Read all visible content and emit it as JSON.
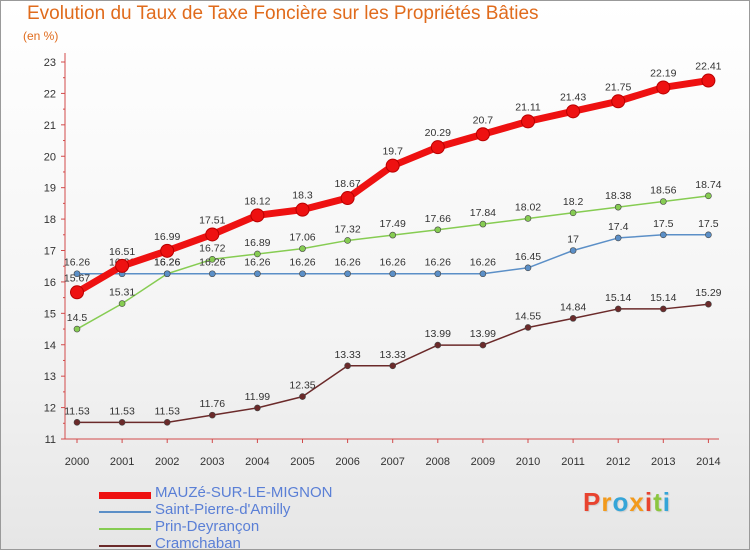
{
  "chart_data": {
    "type": "line",
    "title": "Evolution du Taux de Taxe Foncière sur les Propriétés Bâties",
    "ylabel": "(en %)",
    "xlabel": "",
    "x": [
      "2000",
      "2001",
      "2002",
      "2003",
      "2004",
      "2005",
      "2006",
      "2007",
      "2008",
      "2009",
      "2010",
      "2011",
      "2012",
      "2013",
      "2014"
    ],
    "y_ticks": [
      "11",
      "12",
      "13",
      "14",
      "15",
      "16",
      "17",
      "18",
      "19",
      "20",
      "21",
      "22",
      "23"
    ],
    "ylim": [
      11,
      23
    ],
    "grid": false,
    "legend_position": "bottom-left",
    "series": [
      {
        "name": "MAUZé-SUR-LE-MIGNON",
        "color": "#ee1111",
        "values": [
          15.67,
          16.51,
          16.99,
          17.51,
          18.12,
          18.3,
          18.67,
          19.7,
          20.29,
          20.7,
          21.11,
          21.43,
          21.75,
          22.19,
          22.41
        ],
        "labels": [
          "15.67",
          "16.51",
          "16.99",
          "17.51",
          "18.12",
          "18.3",
          "18.67",
          "19.7",
          "20.29",
          "20.7",
          "21.11",
          "21.43",
          "21.75",
          "22.19",
          "22.41"
        ]
      },
      {
        "name": "Saint-Pierre-d'Amilly",
        "color": "#5b8fc7",
        "values": [
          16.26,
          16.26,
          16.26,
          16.26,
          16.26,
          16.26,
          16.26,
          16.26,
          16.26,
          16.26,
          16.45,
          17,
          17.4,
          17.5,
          17.5
        ],
        "labels": [
          "16.26",
          "16.26",
          "16.26",
          "16.26",
          "16.26",
          "16.26",
          "16.26",
          "16.26",
          "16.26",
          "16.26",
          "16.45",
          "17",
          "17.4",
          "17.5",
          "17.5"
        ]
      },
      {
        "name": "Prin-Deyrançon",
        "color": "#86cc52",
        "values": [
          14.5,
          15.31,
          16.26,
          16.72,
          16.89,
          17.06,
          17.32,
          17.49,
          17.66,
          17.84,
          18.02,
          18.2,
          18.38,
          18.56,
          18.74
        ],
        "labels": [
          "14.5",
          "15.31",
          "16.26",
          "16.72",
          "16.89",
          "17.06",
          "17.32",
          "17.49",
          "17.66",
          "17.84",
          "18.02",
          "18.2",
          "18.38",
          "18.56",
          "18.74"
        ]
      },
      {
        "name": "Cramchaban",
        "color": "#6b2a2a",
        "values": [
          11.53,
          11.53,
          11.53,
          11.76,
          11.99,
          12.35,
          13.33,
          13.33,
          13.99,
          13.99,
          14.55,
          14.84,
          15.14,
          15.14,
          15.29
        ],
        "labels": [
          "11.53",
          "11.53",
          "11.53",
          "11.76",
          "11.99",
          "12.35",
          "13.33",
          "13.33",
          "13.99",
          "13.99",
          "14.55",
          "14.84",
          "15.14",
          "15.14",
          "15.29"
        ]
      }
    ]
  },
  "brand": {
    "text": "Proxiti",
    "colors": [
      "#e8432f",
      "#f29a1c",
      "#35a5d8",
      "#f29a1c",
      "#e8432f",
      "#8cc63f",
      "#35a5d8"
    ]
  }
}
